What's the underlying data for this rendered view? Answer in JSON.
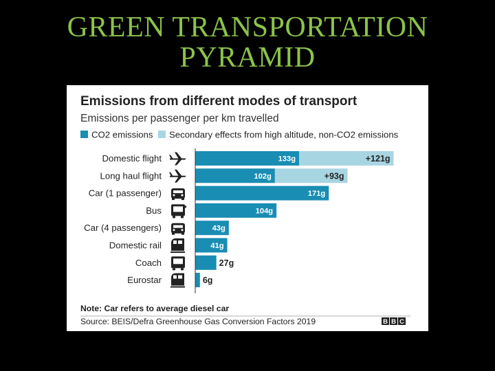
{
  "slide": {
    "title_line1": "GREEN TRANSPORTATION",
    "title_line2": "PYRAMID"
  },
  "colors": {
    "title": "#8bc34a",
    "co2": "#1a8db3",
    "secondary": "#a8d5e2",
    "background": "#000000"
  },
  "chart_data": {
    "type": "bar",
    "orientation": "horizontal",
    "stacked": true,
    "title": "Emissions from different modes of transport",
    "subtitle": "Emissions per passenger per km travelled",
    "unit": "g",
    "categories": [
      "Domestic flight",
      "Long haul flight",
      "Car (1 passenger)",
      "Bus",
      "Car (4 passengers)",
      "Domestic rail",
      "Coach",
      "Eurostar"
    ],
    "icons": [
      "plane-icon",
      "plane-icon",
      "car-icon",
      "bus-icon",
      "car-icon",
      "train-icon",
      "coach-icon",
      "train-icon"
    ],
    "series": [
      {
        "name": "CO2 emissions",
        "values": [
          133,
          102,
          171,
          104,
          43,
          41,
          27,
          6
        ],
        "labels": [
          "133g",
          "102g",
          "171g",
          "104g",
          "43g",
          "41g",
          "27g",
          "6g"
        ]
      },
      {
        "name": "Secondary effects from high altitude, non-CO2 emissions",
        "values": [
          121,
          93,
          0,
          0,
          0,
          0,
          0,
          0
        ],
        "labels": [
          "+121g",
          "+93g",
          "",
          "",
          "",
          "",
          "",
          ""
        ]
      }
    ],
    "xlim": [
      0,
      260
    ],
    "legend_position": "top",
    "note": "Note: Car refers to average diesel car",
    "source": "Source: BEIS/Defra Greenhouse Gas Conversion Factors 2019",
    "logo": "BBC"
  }
}
